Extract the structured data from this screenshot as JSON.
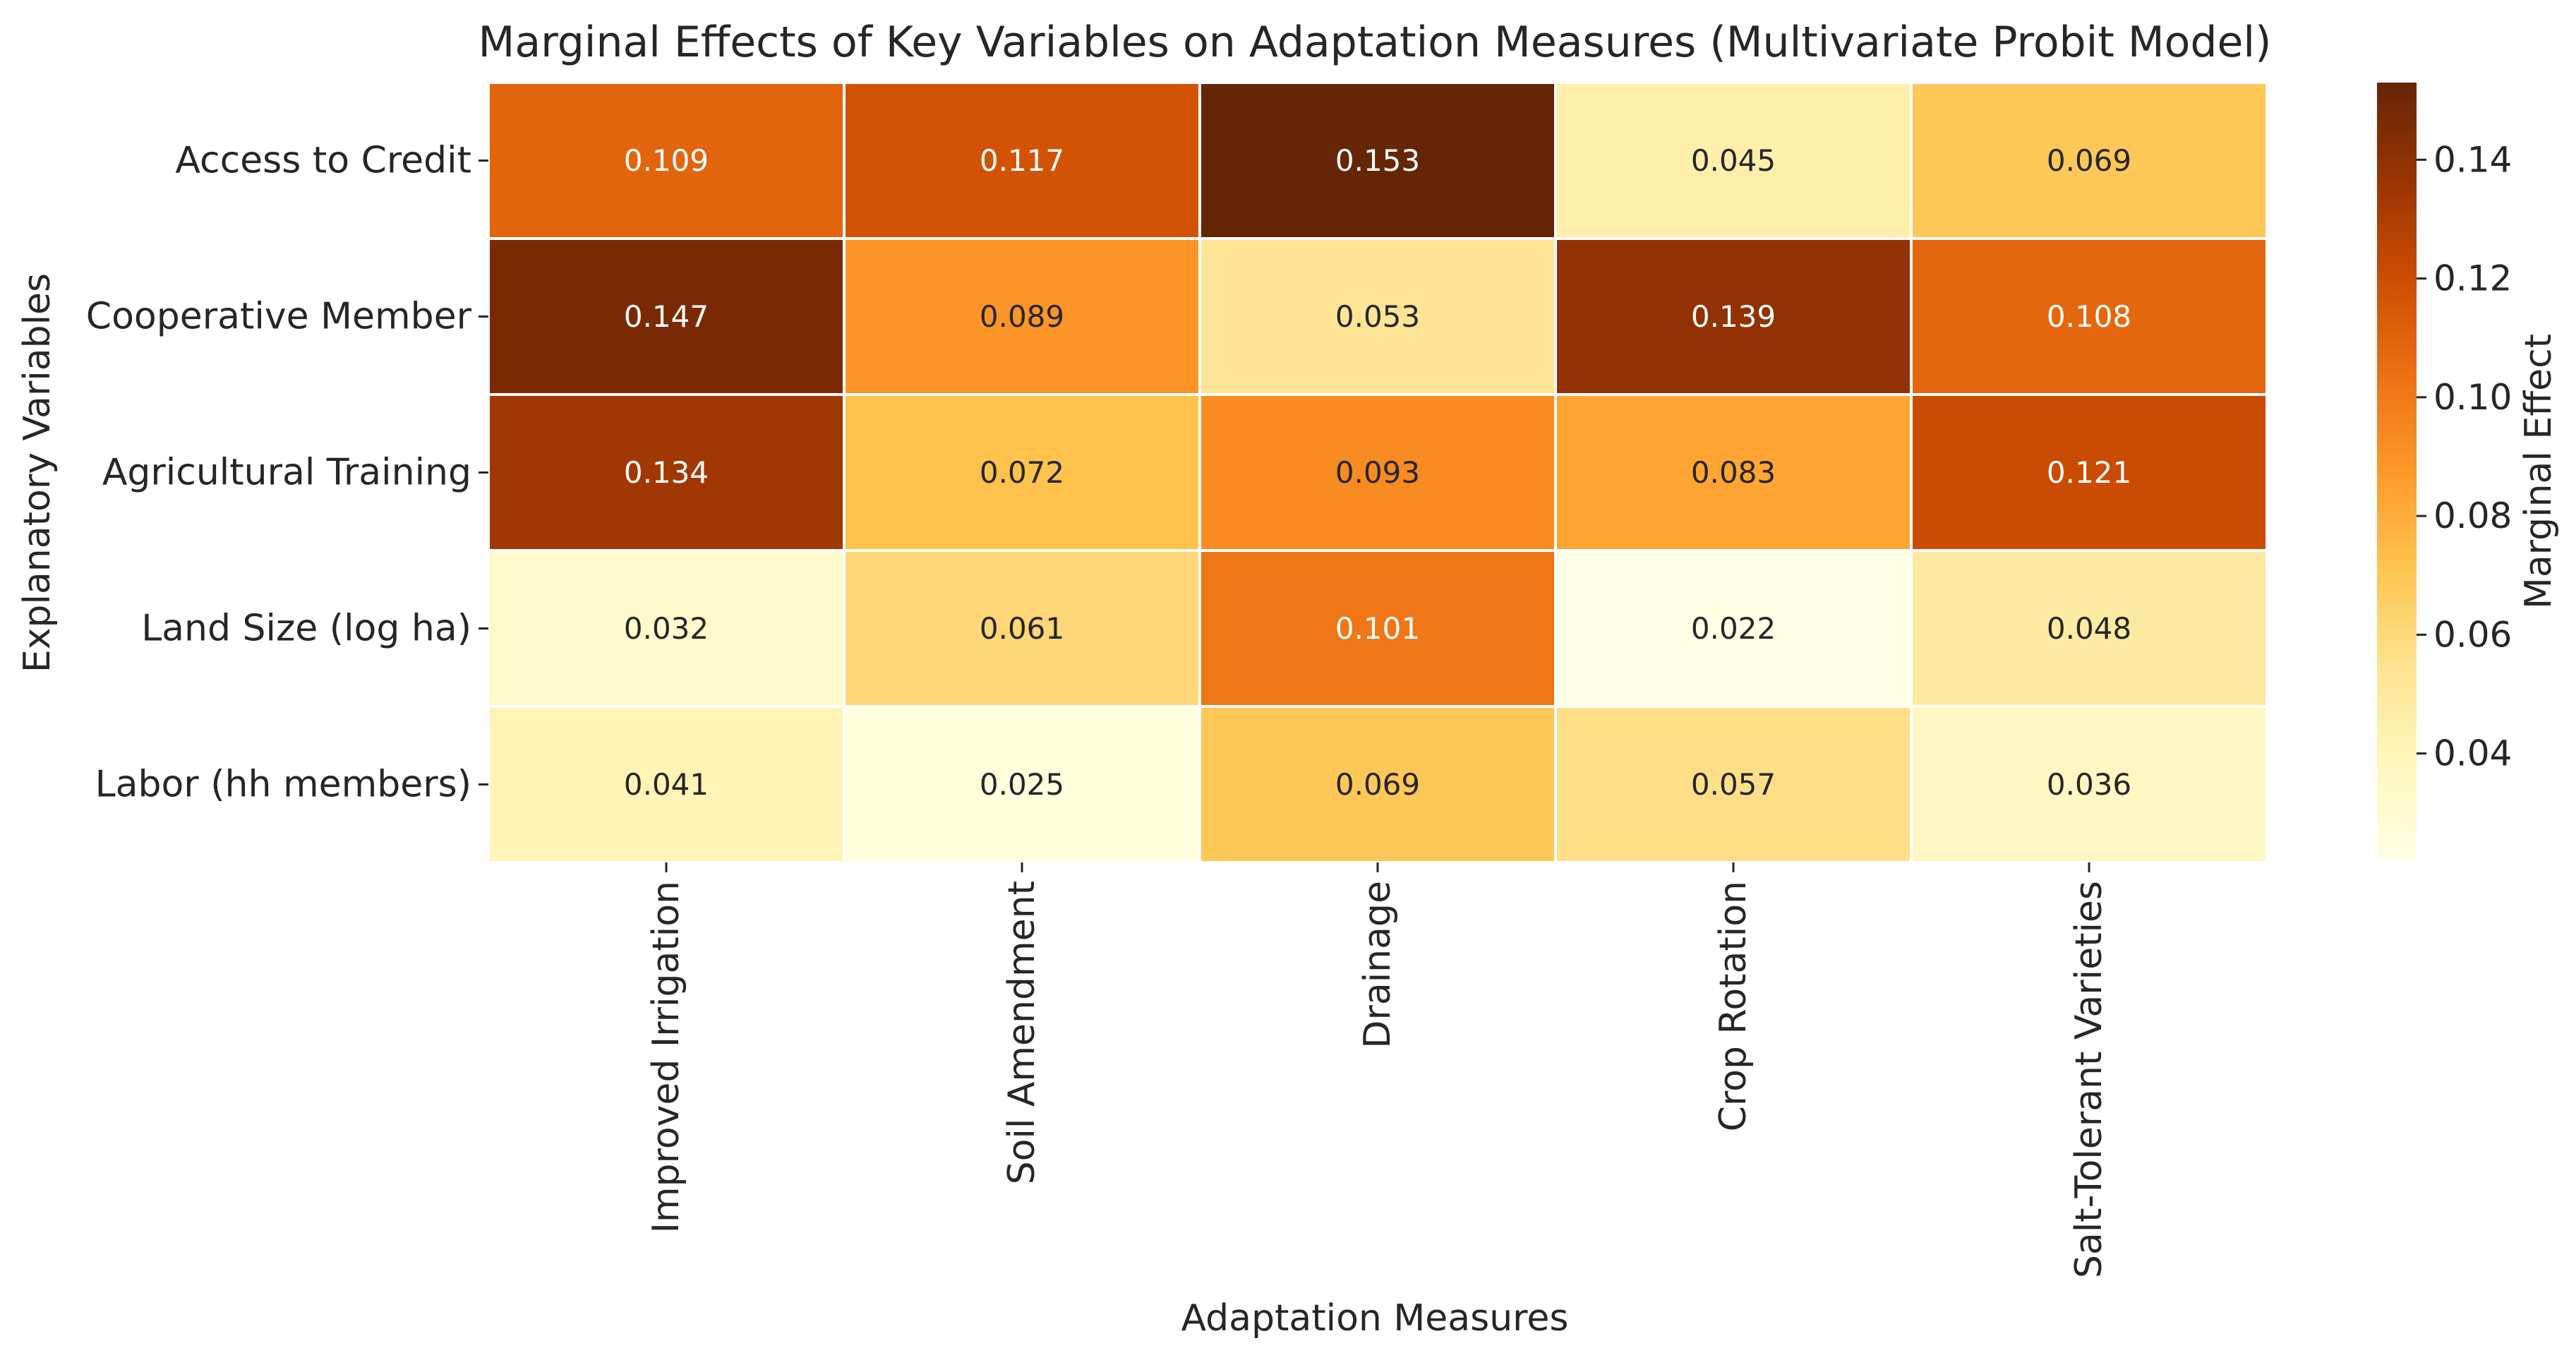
{
  "chart_data": {
    "type": "heatmap",
    "title": "Marginal Effects of Key Variables on Adaptation Measures (Multivariate Probit Model)",
    "xlabel": "Adaptation Measures",
    "ylabel": "Explanatory Variables",
    "colorbar_label": "Marginal Effect",
    "colormap": "YlOrBr",
    "color_range": [
      0.022,
      0.153
    ],
    "colorbar_ticks": [
      0.04,
      0.06,
      0.08,
      0.1,
      0.12,
      0.14
    ],
    "colorbar_tick_labels": [
      "0.04",
      "0.06",
      "0.08",
      "0.10",
      "0.12",
      "0.14"
    ],
    "columns": [
      "Improved Irrigation",
      "Soil Amendment",
      "Drainage",
      "Crop Rotation",
      "Salt-Tolerant Varieties"
    ],
    "rows": [
      "Access to Credit",
      "Cooperative Member",
      "Agricultural Training",
      "Land Size (log ha)",
      "Labor (hh members)"
    ],
    "values": [
      [
        0.109,
        0.117,
        0.153,
        0.045,
        0.069
      ],
      [
        0.147,
        0.089,
        0.053,
        0.139,
        0.108
      ],
      [
        0.134,
        0.072,
        0.093,
        0.083,
        0.121
      ],
      [
        0.032,
        0.061,
        0.101,
        0.022,
        0.048
      ],
      [
        0.041,
        0.025,
        0.069,
        0.057,
        0.036
      ]
    ],
    "value_labels": [
      [
        "0.109",
        "0.117",
        "0.153",
        "0.045",
        "0.069"
      ],
      [
        "0.147",
        "0.089",
        "0.053",
        "0.139",
        "0.108"
      ],
      [
        "0.134",
        "0.072",
        "0.093",
        "0.083",
        "0.121"
      ],
      [
        "0.032",
        "0.061",
        "0.101",
        "0.022",
        "0.048"
      ],
      [
        "0.041",
        "0.025",
        "0.069",
        "0.057",
        "0.036"
      ]
    ]
  }
}
